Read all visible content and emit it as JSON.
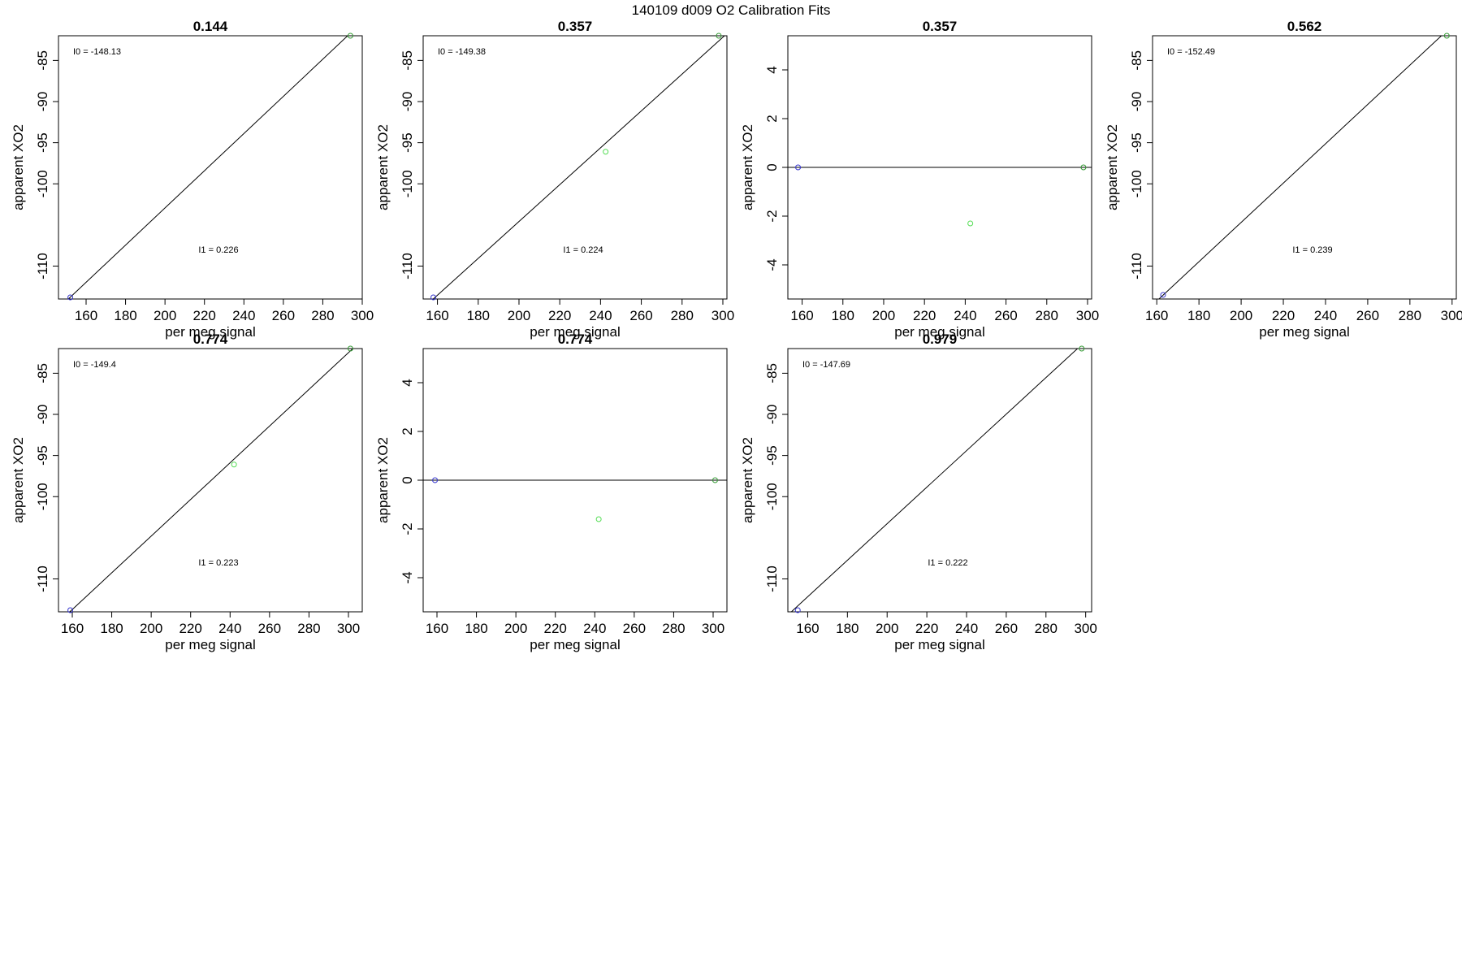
{
  "figure": {
    "title": "140109   d009   O2 Calibration Fits"
  },
  "chart_data": [
    {
      "type": "scatter",
      "title": "0.144",
      "xlabel": "per meg signal",
      "ylabel": "apparent XO2",
      "xlim": [
        146,
        300
      ],
      "ylim": [
        -114,
        -82
      ],
      "xticks": [
        "160",
        "180",
        "200",
        "220",
        "240",
        "260",
        "280",
        "300"
      ],
      "yticks": [
        "-85",
        "-90",
        "-95",
        "-100",
        "-110"
      ],
      "grid": false,
      "annotations": {
        "i0": "I0 =  -148.13",
        "i1": "I1 =  0.226"
      },
      "fit_line": {
        "intercept": -148.13,
        "slope": 0.226
      },
      "points": [
        {
          "x": 152,
          "y": -113.8,
          "color": "#3333cc"
        },
        {
          "x": 294,
          "y": -82.0,
          "color": "#339933"
        }
      ]
    },
    {
      "type": "scatter",
      "title": "0.357",
      "xlabel": "per meg signal",
      "ylabel": "apparent XO2",
      "xlim": [
        153,
        302
      ],
      "ylim": [
        -114,
        -82
      ],
      "xticks": [
        "160",
        "180",
        "200",
        "220",
        "240",
        "260",
        "280",
        "300"
      ],
      "yticks": [
        "-85",
        "-90",
        "-95",
        "-100",
        "-110"
      ],
      "grid": false,
      "annotations": {
        "i0": "I0 =  -149.38",
        "i1": "I1 =  0.224"
      },
      "fit_line": {
        "intercept": -149.38,
        "slope": 0.224
      },
      "points": [
        {
          "x": 158,
          "y": -113.8,
          "color": "#3333cc"
        },
        {
          "x": 242.5,
          "y": -96.1,
          "color": "#55dd55"
        },
        {
          "x": 298,
          "y": -82.0,
          "color": "#339933"
        }
      ]
    },
    {
      "type": "scatter",
      "title": "0.357",
      "xlabel": "per meg signal",
      "ylabel": "apparent XO2",
      "xlim": [
        153,
        302
      ],
      "ylim": [
        -5.4,
        5.4
      ],
      "xticks": [
        "160",
        "180",
        "200",
        "220",
        "240",
        "260",
        "280",
        "300"
      ],
      "yticks": [
        "4",
        "2",
        "0",
        "-2",
        "-4"
      ],
      "grid": false,
      "annotations": {},
      "hline": 0,
      "points": [
        {
          "x": 158,
          "y": 0,
          "color": "#3333cc"
        },
        {
          "x": 242.5,
          "y": -2.3,
          "color": "#55dd55"
        },
        {
          "x": 298,
          "y": 0,
          "color": "#339933"
        }
      ]
    },
    {
      "type": "scatter",
      "title": "0.562",
      "xlabel": "per meg signal",
      "ylabel": "apparent XO2",
      "xlim": [
        158,
        302
      ],
      "ylim": [
        -114,
        -82
      ],
      "xticks": [
        "160",
        "180",
        "200",
        "220",
        "240",
        "260",
        "280",
        "300"
      ],
      "yticks": [
        "-85",
        "-90",
        "-95",
        "-100",
        "-110"
      ],
      "grid": false,
      "annotations": {
        "i0": "I0 =  -152.49",
        "i1": "I1 =  0.239"
      },
      "fit_line": {
        "intercept": -152.49,
        "slope": 0.239
      },
      "points": [
        {
          "x": 163,
          "y": -113.5,
          "color": "#3333cc"
        },
        {
          "x": 297.5,
          "y": -82.0,
          "color": "#339933"
        }
      ]
    },
    {
      "type": "scatter",
      "title": "0.774",
      "xlabel": "per meg signal",
      "ylabel": "apparent XO2",
      "xlim": [
        153,
        307
      ],
      "ylim": [
        -114,
        -82
      ],
      "xticks": [
        "160",
        "180",
        "200",
        "220",
        "240",
        "260",
        "280",
        "300"
      ],
      "yticks": [
        "-85",
        "-90",
        "-95",
        "-100",
        "-110"
      ],
      "grid": false,
      "annotations": {
        "i0": "I0 =  -149.4",
        "i1": "I1 =  0.223"
      },
      "fit_line": {
        "intercept": -149.4,
        "slope": 0.223
      },
      "points": [
        {
          "x": 159,
          "y": -113.8,
          "color": "#3333cc"
        },
        {
          "x": 242,
          "y": -96.1,
          "color": "#55dd55"
        },
        {
          "x": 301,
          "y": -82.0,
          "color": "#339933"
        }
      ]
    },
    {
      "type": "scatter",
      "title": "0.774",
      "xlabel": "per meg signal",
      "ylabel": "apparent XO2",
      "xlim": [
        153,
        307
      ],
      "ylim": [
        -5.4,
        5.4
      ],
      "xticks": [
        "160",
        "180",
        "200",
        "220",
        "240",
        "260",
        "280",
        "300"
      ],
      "yticks": [
        "4",
        "2",
        "0",
        "-2",
        "-4"
      ],
      "grid": false,
      "annotations": {},
      "hline": 0,
      "points": [
        {
          "x": 159,
          "y": 0,
          "color": "#3333cc"
        },
        {
          "x": 242,
          "y": -1.6,
          "color": "#55dd55"
        },
        {
          "x": 301,
          "y": 0,
          "color": "#339933"
        }
      ]
    },
    {
      "type": "scatter",
      "title": "0.979",
      "xlabel": "per meg signal",
      "ylabel": "apparent XO2",
      "xlim": [
        150,
        303
      ],
      "ylim": [
        -114,
        -82
      ],
      "xticks": [
        "160",
        "180",
        "200",
        "220",
        "240",
        "260",
        "280",
        "300"
      ],
      "yticks": [
        "-85",
        "-90",
        "-95",
        "-100",
        "-110"
      ],
      "grid": false,
      "annotations": {
        "i0": "I0 =  -147.69",
        "i1": "I1 =  0.222"
      },
      "fit_line": {
        "intercept": -147.69,
        "slope": 0.222
      },
      "points": [
        {
          "x": 155,
          "y": -113.8,
          "color": "#3333cc"
        },
        {
          "x": 298,
          "y": -82.0,
          "color": "#339933"
        }
      ]
    }
  ]
}
